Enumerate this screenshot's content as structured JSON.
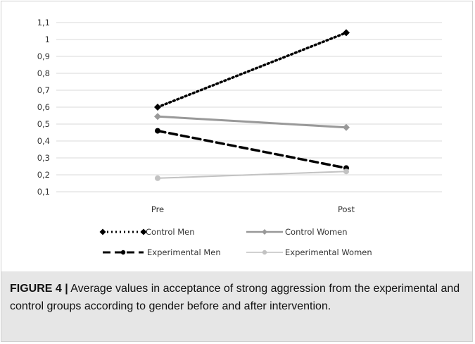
{
  "chart_data": {
    "type": "line",
    "categories": [
      "Pre",
      "Post"
    ],
    "ylim": [
      0.1,
      1.1
    ],
    "yticks": [
      "1,1",
      "1",
      "0,9",
      "0,8",
      "0,7",
      "0,6",
      "0,5",
      "0,4",
      "0,3",
      "0,2",
      "0,1"
    ],
    "grid": true,
    "legend_position": "bottom",
    "series": [
      {
        "name": "Control Men",
        "values": [
          0.6,
          1.04
        ],
        "color": "#000000",
        "dash": "dotted",
        "marker": "diamond"
      },
      {
        "name": "Control Women",
        "values": [
          0.545,
          0.48
        ],
        "color": "#999999",
        "dash": "solid",
        "marker": "diamond"
      },
      {
        "name": "Experimental Men",
        "values": [
          0.46,
          0.24
        ],
        "color": "#000000",
        "dash": "dashed",
        "marker": "circle"
      },
      {
        "name": "Experimental Women",
        "values": [
          0.18,
          0.22
        ],
        "color": "#c2c2c2",
        "dash": "solid",
        "marker": "circle"
      }
    ]
  },
  "caption": {
    "label": "FIGURE 4 |",
    "text": " Average values in acceptance of strong aggression from the experimental and control groups according to gender before and after intervention."
  }
}
